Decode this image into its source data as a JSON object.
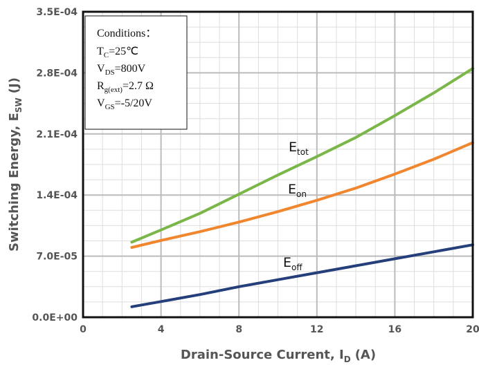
{
  "chart_data": {
    "type": "line",
    "xlabel": "Drain-Source Current, I",
    "xlabel_sub": "D",
    "xlabel_unit": "(A)",
    "ylabel": "Switching Energy, E",
    "ylabel_sub": "SW",
    "ylabel_unit": "(J)",
    "xlim": [
      0,
      20
    ],
    "ylim": [
      0,
      0.00035
    ],
    "x_ticks": [
      0,
      4,
      8,
      12,
      16,
      20
    ],
    "x_tick_labels": [
      "0",
      "4",
      "8",
      "12",
      "16",
      "20"
    ],
    "y_ticks": [
      0,
      7e-05,
      0.00014,
      0.00021,
      0.00028,
      0.00035
    ],
    "y_tick_labels": [
      "0.0E+00",
      "7.0E-05",
      "1.4E-04",
      "2.1E-04",
      "2.8E-04",
      "3.5E-04"
    ],
    "grid": true,
    "x": [
      2.5,
      4,
      6,
      8,
      10,
      12,
      14,
      16,
      18,
      20
    ],
    "series": [
      {
        "name": "E",
        "name_sub": "tot",
        "color": "#7ab648",
        "values": [
          8.6e-05,
          0.0001,
          0.000119,
          0.000141,
          0.000163,
          0.000184,
          0.000206,
          0.000231,
          0.000257,
          0.000285
        ]
      },
      {
        "name": "E",
        "name_sub": "on",
        "color": "#f0862e",
        "values": [
          8e-05,
          8.8e-05,
          9.8e-05,
          0.000109,
          0.000121,
          0.000134,
          0.000148,
          0.000164,
          0.000181,
          0.0002
        ]
      },
      {
        "name": "E",
        "name_sub": "off",
        "color": "#243f7a",
        "values": [
          1.2e-05,
          1.8e-05,
          2.6e-05,
          3.5e-05,
          4.3e-05,
          5.1e-05,
          5.9e-05,
          6.7e-05,
          7.5e-05,
          8.3e-05
        ]
      }
    ],
    "conditions": {
      "title": "Conditions：",
      "lines": [
        {
          "main": "T",
          "sub": "C",
          "rest": "=25℃"
        },
        {
          "main": "V",
          "sub": "DS",
          "rest": "=800V"
        },
        {
          "main": "R",
          "sub": "g(ext)",
          "rest": "=2.7 Ω"
        },
        {
          "main": "V",
          "sub": "GS",
          "rest": "=-5/20V"
        }
      ]
    }
  }
}
